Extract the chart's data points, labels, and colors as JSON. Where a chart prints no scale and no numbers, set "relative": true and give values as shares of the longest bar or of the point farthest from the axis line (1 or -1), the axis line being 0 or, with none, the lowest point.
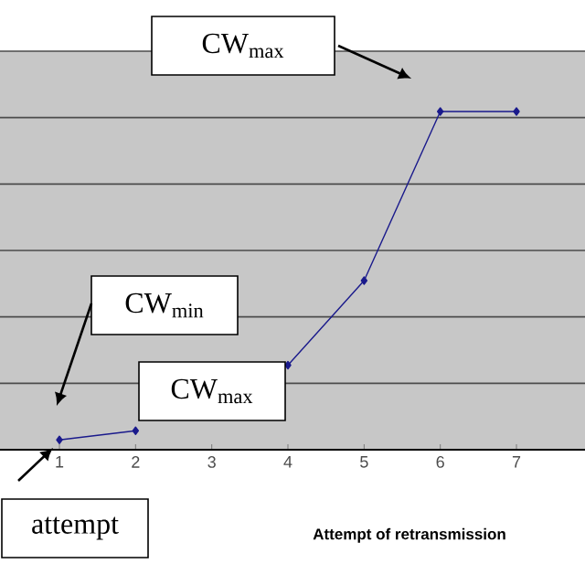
{
  "chart_data": {
    "type": "line",
    "relative": true,
    "categories": [
      "1",
      "2",
      "3",
      "4",
      "5",
      "6",
      "7"
    ],
    "series": [
      {
        "color": "#1a1a8c",
        "values": [
          0.029,
          0.056,
          null,
          0.25,
          0.5,
          1,
          1
        ]
      }
    ],
    "xlabel": "Attempt of retransmission",
    "grid": "y",
    "marker": "diamond",
    "line_style": "solid",
    "annotations": [
      "CW$_{max}$",
      "CW$_{min}$",
      "CW$_{max}$",
      "attempt"
    ]
  }
}
